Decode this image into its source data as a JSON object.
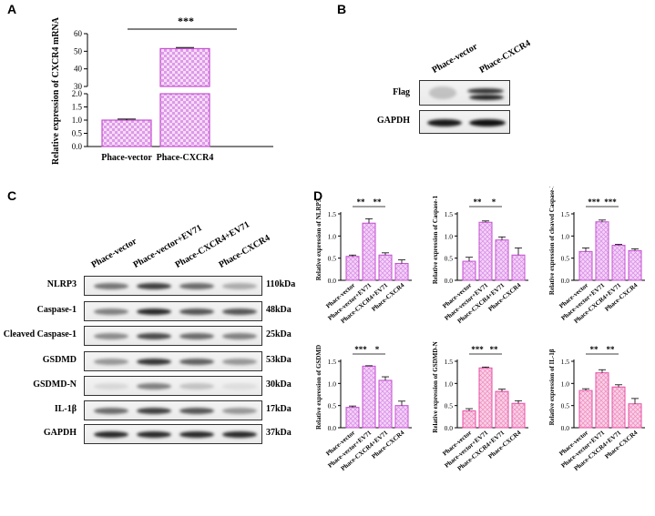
{
  "colors": {
    "magenta": "#c64fd1",
    "pink": "#e74fa6",
    "bar_fill_a": "#e8b4ef",
    "bar_fill_d": "#f8c0dc"
  },
  "panelA": {
    "label": "A",
    "ylabel": "Relative expression of CXCR4 mRNA",
    "sig": "***",
    "chart": {
      "type": "bar",
      "categories": [
        "Phace-vector",
        "Phace-CXCR4"
      ],
      "values": [
        1.0,
        51.5
      ],
      "errors": [
        0.04,
        0.6
      ],
      "yaxis_break": {
        "lower": [
          0.0,
          2.0
        ],
        "upper": [
          30,
          60
        ]
      },
      "lower_ticks": [
        "0.0",
        "0.5",
        "1.0",
        "1.5",
        "2.0"
      ],
      "upper_ticks": [
        "30",
        "40",
        "50",
        "60"
      ]
    }
  },
  "panelB": {
    "label": "B",
    "lanes": [
      "Phace-vector",
      "Phace-CXCR4"
    ],
    "rows": [
      "Flag",
      "GAPDH"
    ]
  },
  "panelC": {
    "label": "C",
    "lanes": [
      "Phace-vector",
      "Phace-vector+EV71",
      "Phace-CXCR4+EV71",
      "Phace-CXCR4"
    ],
    "rows": [
      {
        "name": "NLRP3",
        "kda": "110kDa"
      },
      {
        "name": "Caspase-1",
        "kda": "48kDa"
      },
      {
        "name": "Cleaved Caspase-1",
        "kda": "25kDa"
      },
      {
        "name": "GSDMD",
        "kda": "53kDa"
      },
      {
        "name": "GSDMD-N",
        "kda": "30kDa"
      },
      {
        "name": "IL-1β",
        "kda": "17kDa"
      },
      {
        "name": "GAPDH",
        "kda": "37kDa"
      }
    ]
  },
  "panelD": {
    "label": "D",
    "categories": [
      "Phace-vector",
      "Phace-vector+EV71",
      "Phace-CXCR4+EV71",
      "Phace-CXCR4"
    ]
  },
  "chart_data": [
    {
      "type": "bar",
      "id": "A",
      "ylabel": "Relative expression of CXCR4 mRNA",
      "categories": [
        "Phace-vector",
        "Phace-CXCR4"
      ],
      "values": [
        1.0,
        51.5
      ],
      "errors": [
        0.04,
        0.6
      ],
      "annotations": [
        "***"
      ]
    },
    {
      "type": "bar",
      "ylabel": "Relative expression of NLRP3",
      "categories": [
        "Phace-vector",
        "Phace-vector+EV71",
        "Phace-CXCR4+EV71",
        "Phace-CXCR4"
      ],
      "values": [
        0.54,
        1.29,
        0.57,
        0.38
      ],
      "errors": [
        0.03,
        0.1,
        0.05,
        0.08
      ],
      "ylim": [
        0,
        1.5
      ],
      "ticks": [
        "0.0",
        "0.5",
        "1.0",
        "1.5"
      ],
      "sig": [
        {
          "from": 0,
          "to": 1,
          "text": "**"
        },
        {
          "from": 1,
          "to": 2,
          "text": "**"
        }
      ],
      "color": "#c64fd1"
    },
    {
      "type": "bar",
      "ylabel": "Relative expression of Caspase-1",
      "categories": [
        "Phace-vector",
        "Phace-vector+EV71",
        "Phace-CXCR4+EV71",
        "Phace-CXCR4"
      ],
      "values": [
        0.43,
        1.31,
        0.91,
        0.57
      ],
      "errors": [
        0.09,
        0.03,
        0.07,
        0.16
      ],
      "ylim": [
        0,
        1.5
      ],
      "ticks": [
        "0.0",
        "0.5",
        "1.0",
        "1.5"
      ],
      "sig": [
        {
          "from": 0,
          "to": 1,
          "text": "**"
        },
        {
          "from": 1,
          "to": 2,
          "text": "*"
        }
      ],
      "color": "#c64fd1"
    },
    {
      "type": "bar",
      "ylabel": "Relative expression of cleaved Caspase-1",
      "categories": [
        "Phace-vector",
        "Phace-vector+EV71",
        "Phace-CXCR4+EV71",
        "Phace-CXCR4"
      ],
      "values": [
        0.65,
        1.32,
        0.79,
        0.67
      ],
      "errors": [
        0.08,
        0.04,
        0.02,
        0.04
      ],
      "ylim": [
        0,
        1.5
      ],
      "ticks": [
        "0.0",
        "0.5",
        "1.0",
        "1.5"
      ],
      "sig": [
        {
          "from": 0,
          "to": 1,
          "text": "***"
        },
        {
          "from": 1,
          "to": 2,
          "text": "***"
        }
      ],
      "color": "#c64fd1"
    },
    {
      "type": "bar",
      "ylabel": "Relative expression of GSDMD",
      "categories": [
        "Phace-vector",
        "Phace-vector+EV71",
        "Phace-CXCR4+EV71",
        "Phace-CXCR4"
      ],
      "values": [
        0.46,
        1.39,
        1.07,
        0.5
      ],
      "errors": [
        0.03,
        0.01,
        0.08,
        0.1
      ],
      "ylim": [
        0,
        1.5
      ],
      "ticks": [
        "0.0",
        "0.5",
        "1.0",
        "1.5"
      ],
      "sig": [
        {
          "from": 0,
          "to": 1,
          "text": "***"
        },
        {
          "from": 1,
          "to": 2,
          "text": "*"
        }
      ],
      "color": "#c64fd1"
    },
    {
      "type": "bar",
      "ylabel": "Relative expression of GSDMD-N",
      "categories": [
        "Phace-vector",
        "Phace-vector+EV71",
        "Phace-CXCR4+EV71",
        "Phace-CXCR4"
      ],
      "values": [
        0.38,
        1.35,
        0.82,
        0.55
      ],
      "errors": [
        0.05,
        0.02,
        0.05,
        0.06
      ],
      "ylim": [
        0,
        1.5
      ],
      "ticks": [
        "0.0",
        "0.5",
        "1.0",
        "1.5"
      ],
      "sig": [
        {
          "from": 0,
          "to": 1,
          "text": "***"
        },
        {
          "from": 1,
          "to": 2,
          "text": "**"
        }
      ],
      "color": "#e74fa6"
    },
    {
      "type": "bar",
      "ylabel": "Relative expression of IL-1β",
      "categories": [
        "Phace-vector",
        "Phace-vector+EV71",
        "Phace-CXCR4+EV71",
        "Phace-CXCR4"
      ],
      "values": [
        0.84,
        1.24,
        0.92,
        0.54
      ],
      "errors": [
        0.04,
        0.07,
        0.05,
        0.12
      ],
      "ylim": [
        0,
        1.5
      ],
      "ticks": [
        "0.0",
        "0.5",
        "1.0",
        "1.5"
      ],
      "sig": [
        {
          "from": 0,
          "to": 1,
          "text": "**"
        },
        {
          "from": 1,
          "to": 2,
          "text": "**"
        }
      ],
      "color": "#e74fa6"
    }
  ]
}
